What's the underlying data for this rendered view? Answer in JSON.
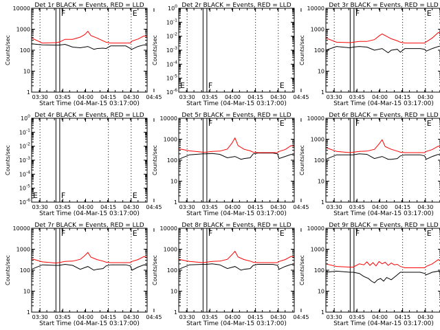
{
  "colors": {
    "events": "#000000",
    "lld": "#ff0000",
    "axes": "#000000",
    "background": "#ffffff"
  },
  "panel_common": {
    "xlabel": "Start Time (04-Mar-15 03:17:00)",
    "ylabel": "Counts/sec",
    "x_ticks": [
      "03:30",
      "03:45",
      "04:00",
      "04:15",
      "04:30",
      "04:45"
    ],
    "x_range_min": [
      23,
      99
    ],
    "x_tick_min": [
      28.5,
      43.5,
      58.5,
      73.5,
      88.5,
      103.5
    ],
    "dotted_line_min": [
      28.5,
      73.5,
      88.5
    ],
    "box_min": [
      39.0,
      41.5
    ],
    "y_ticks_log": [
      "1",
      "10",
      "100",
      "1000",
      "10000"
    ],
    "y_ticks_zero": [
      "10^-6",
      "10^-5",
      "10^-4",
      "10^-3",
      "10^-2",
      "10^-1",
      "10^0"
    ]
  },
  "chart_data": [
    {
      "type": "line",
      "title": "Det 1r BLACK = Events, RED = LLD",
      "yscale": "log",
      "ylim": [
        1,
        10000
      ],
      "markers": [
        {
          "label": "F",
          "x": 41.5
        },
        {
          "label": "E",
          "x": 88.5
        }
      ],
      "series": [
        {
          "color": "#000000",
          "x": [
            23,
            30,
            39,
            41,
            45,
            50,
            55,
            60,
            64,
            66,
            70,
            72,
            75,
            80,
            85,
            88,
            89,
            93,
            97,
            99
          ],
          "values": [
            200,
            180,
            175,
            175,
            190,
            140,
            130,
            150,
            110,
            120,
            125,
            120,
            160,
            160,
            160,
            120,
            110,
            150,
            180,
            170
          ]
        },
        {
          "color": "#ff0000",
          "x": [
            23,
            30,
            39,
            41,
            45,
            50,
            55,
            58,
            60,
            62,
            66,
            70,
            72,
            75,
            80,
            85,
            88,
            89,
            93,
            97,
            99
          ],
          "values": [
            380,
            220,
            230,
            240,
            330,
            330,
            420,
            560,
            800,
            500,
            380,
            280,
            240,
            220,
            220,
            220,
            220,
            270,
            340,
            480,
            440
          ]
        }
      ]
    },
    {
      "type": "line",
      "title": "Det 2r BLACK = Events, RED = LLD",
      "yscale": "log",
      "ylim": [
        "10^-6",
        "10^0"
      ],
      "markers": [
        {
          "label": "E",
          "x": 23
        },
        {
          "label": "F",
          "x": 41.5
        },
        {
          "label": "E",
          "x": 88.5
        }
      ],
      "series": []
    },
    {
      "type": "line",
      "title": "Det 3r BLACK = Events, RED = LLD",
      "yscale": "log",
      "ylim": [
        1,
        10000
      ],
      "markers": [
        {
          "label": "F",
          "x": 41.5
        },
        {
          "label": "E",
          "x": 88.5
        }
      ],
      "series": [
        {
          "color": "#000000",
          "x": [
            23,
            30,
            39,
            41,
            45,
            50,
            55,
            60,
            64,
            66,
            70,
            72,
            75,
            80,
            85,
            88,
            89,
            93,
            97,
            99
          ],
          "values": [
            100,
            150,
            130,
            140,
            150,
            140,
            100,
            120,
            75,
            100,
            110,
            80,
            120,
            120,
            120,
            110,
            90,
            120,
            150,
            160
          ]
        },
        {
          "color": "#ff0000",
          "x": [
            23,
            30,
            39,
            41,
            45,
            50,
            55,
            58,
            60,
            62,
            66,
            70,
            72,
            75,
            80,
            85,
            88,
            89,
            93,
            97,
            99
          ],
          "values": [
            380,
            240,
            230,
            240,
            260,
            260,
            320,
            480,
            600,
            500,
            350,
            280,
            240,
            220,
            220,
            220,
            220,
            250,
            380,
            700,
            600
          ]
        }
      ]
    },
    {
      "type": "line",
      "title": "Det 4r BLACK = Events, RED = LLD",
      "yscale": "log",
      "ylim": [
        "10^-6",
        "10^0"
      ],
      "markers": [
        {
          "label": "E",
          "x": 23
        },
        {
          "label": "F",
          "x": 41.5
        },
        {
          "label": "E",
          "x": 88.5
        }
      ],
      "series": []
    },
    {
      "type": "line",
      "title": "Det 5r BLACK = Events, RED = LLD",
      "yscale": "log",
      "ylim": [
        1,
        10000
      ],
      "markers": [
        {
          "label": "F",
          "x": 41.5
        },
        {
          "label": "E",
          "x": 88.5
        }
      ],
      "series": [
        {
          "color": "#000000",
          "x": [
            23,
            30,
            39,
            41,
            45,
            50,
            55,
            60,
            64,
            66,
            70,
            72,
            75,
            80,
            85,
            88,
            89,
            93,
            97,
            99
          ],
          "values": [
            110,
            180,
            200,
            200,
            210,
            190,
            130,
            150,
            110,
            120,
            130,
            200,
            220,
            220,
            220,
            200,
            120,
            150,
            190,
            170
          ]
        },
        {
          "color": "#ff0000",
          "x": [
            23,
            30,
            39,
            41,
            45,
            50,
            55,
            58,
            60,
            62,
            66,
            70,
            72,
            75,
            80,
            85,
            88,
            89,
            93,
            97,
            99
          ],
          "values": [
            350,
            280,
            240,
            240,
            260,
            270,
            340,
            650,
            1150,
            500,
            330,
            280,
            240,
            230,
            230,
            230,
            230,
            260,
            320,
            500,
            450
          ]
        }
      ]
    },
    {
      "type": "line",
      "title": "Det 6r BLACK = Events, RED = LLD",
      "yscale": "log",
      "ylim": [
        1,
        10000
      ],
      "markers": [
        {
          "label": "F",
          "x": 41.5
        },
        {
          "label": "E",
          "x": 88.5
        }
      ],
      "series": [
        {
          "color": "#000000",
          "x": [
            23,
            30,
            39,
            41,
            45,
            50,
            55,
            60,
            64,
            66,
            70,
            72,
            75,
            80,
            85,
            88,
            89,
            93,
            97,
            99
          ],
          "values": [
            110,
            180,
            180,
            180,
            200,
            190,
            120,
            150,
            110,
            110,
            120,
            160,
            180,
            180,
            180,
            160,
            110,
            150,
            190,
            160
          ]
        },
        {
          "color": "#ff0000",
          "x": [
            23,
            30,
            39,
            41,
            45,
            50,
            55,
            58,
            60,
            62,
            66,
            70,
            72,
            75,
            80,
            85,
            88,
            89,
            93,
            97,
            99
          ],
          "values": [
            400,
            260,
            230,
            240,
            260,
            270,
            330,
            600,
            950,
            450,
            330,
            270,
            240,
            230,
            230,
            230,
            230,
            260,
            320,
            470,
            420
          ]
        }
      ]
    },
    {
      "type": "line",
      "title": "Det 7r BLACK = Events, RED = LLD",
      "yscale": "log",
      "ylim": [
        1,
        10000
      ],
      "markers": [
        {
          "label": "F",
          "x": 41.5
        },
        {
          "label": "E",
          "x": 88.5
        }
      ],
      "series": [
        {
          "color": "#000000",
          "x": [
            23,
            30,
            39,
            41,
            45,
            50,
            55,
            60,
            64,
            66,
            70,
            72,
            75,
            80,
            85,
            88,
            89,
            93,
            97,
            99
          ],
          "values": [
            110,
            180,
            170,
            170,
            190,
            170,
            110,
            150,
            100,
            110,
            120,
            160,
            180,
            180,
            180,
            160,
            100,
            140,
            180,
            170
          ]
        },
        {
          "color": "#ff0000",
          "x": [
            23,
            30,
            39,
            41,
            45,
            50,
            55,
            58,
            60,
            62,
            66,
            70,
            72,
            75,
            80,
            85,
            88,
            89,
            93,
            97,
            99
          ],
          "values": [
            350,
            250,
            220,
            230,
            260,
            270,
            330,
            500,
            700,
            420,
            320,
            270,
            240,
            230,
            230,
            230,
            230,
            260,
            320,
            450,
            400
          ]
        }
      ]
    },
    {
      "type": "line",
      "title": "Det 8r BLACK = Events, RED = LLD",
      "yscale": "log",
      "ylim": [
        1,
        10000
      ],
      "markers": [
        {
          "label": "F",
          "x": 41.5
        },
        {
          "label": "E",
          "x": 88.5
        }
      ],
      "series": [
        {
          "color": "#000000",
          "x": [
            23,
            30,
            39,
            41,
            45,
            50,
            55,
            60,
            64,
            66,
            70,
            72,
            75,
            80,
            85,
            88,
            89,
            93,
            97,
            99
          ],
          "values": [
            110,
            180,
            190,
            190,
            200,
            180,
            120,
            150,
            100,
            110,
            120,
            170,
            190,
            190,
            190,
            170,
            110,
            150,
            190,
            170
          ]
        },
        {
          "color": "#ff0000",
          "x": [
            23,
            30,
            39,
            41,
            45,
            50,
            55,
            58,
            60,
            62,
            66,
            70,
            72,
            75,
            80,
            85,
            88,
            89,
            93,
            97,
            99
          ],
          "values": [
            330,
            260,
            230,
            240,
            260,
            270,
            330,
            550,
            800,
            430,
            320,
            270,
            240,
            230,
            230,
            230,
            230,
            260,
            320,
            460,
            420
          ]
        }
      ]
    },
    {
      "type": "line",
      "title": "Det 9r BLACK = Events, RED = LLD",
      "yscale": "log",
      "ylim": [
        1,
        10000
      ],
      "markers": [
        {
          "label": "F",
          "x": 41.5
        },
        {
          "label": "E",
          "x": 88.5
        }
      ],
      "series": [
        {
          "color": "#000000",
          "x": [
            23,
            30,
            39,
            41,
            45,
            48,
            51,
            53,
            55,
            57,
            59,
            61,
            63,
            66,
            70,
            72,
            75,
            80,
            85,
            88,
            89,
            93,
            97,
            99
          ],
          "values": [
            80,
            90,
            80,
            80,
            70,
            50,
            40,
            30,
            25,
            35,
            40,
            30,
            45,
            35,
            60,
            80,
            80,
            80,
            80,
            70,
            60,
            80,
            90,
            70
          ]
        },
        {
          "color": "#ff0000",
          "x": [
            23,
            30,
            39,
            41,
            45,
            48,
            50,
            52,
            54,
            56,
            58,
            60,
            62,
            64,
            66,
            68,
            70,
            72,
            75,
            80,
            85,
            88,
            89,
            93,
            97,
            99
          ],
          "values": [
            200,
            150,
            140,
            140,
            200,
            180,
            250,
            170,
            230,
            160,
            260,
            200,
            240,
            170,
            220,
            180,
            190,
            150,
            130,
            130,
            130,
            130,
            150,
            200,
            320,
            260
          ]
        }
      ]
    }
  ]
}
